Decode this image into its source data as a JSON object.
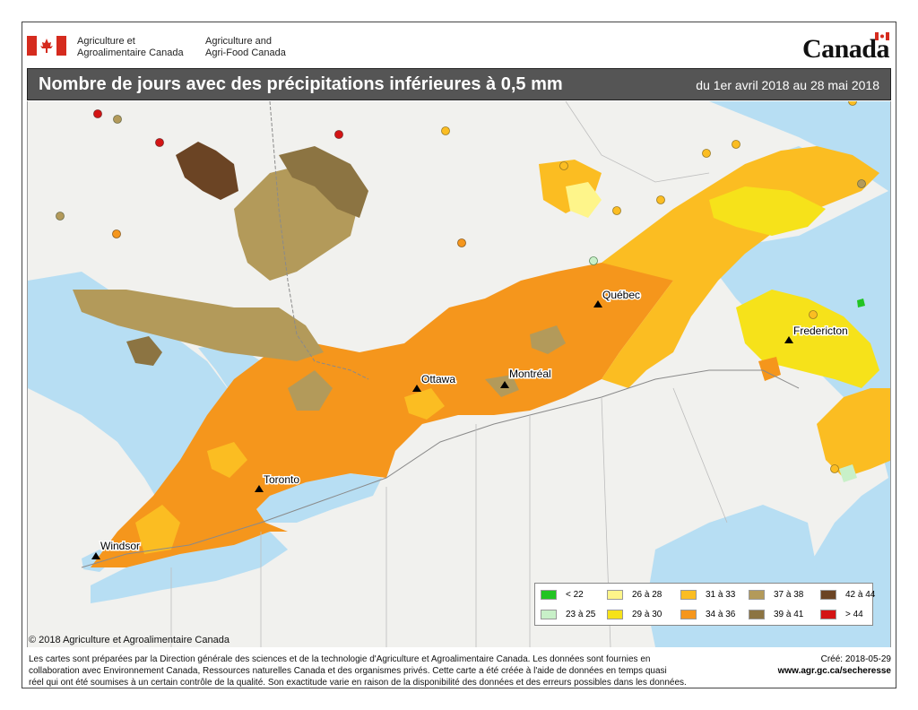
{
  "header": {
    "dept_fr_line1": "Agriculture et",
    "dept_fr_line2": "Agroalimentaire Canada",
    "dept_en_line1": "Agriculture and",
    "dept_en_line2": "Agri-Food Canada",
    "wordmark": "Canada"
  },
  "title": {
    "main": "Nombre de jours avec des précipitations inférieures à 0,5 mm",
    "period": "du 1er avril 2018 au 28 mai 2018"
  },
  "cities": [
    {
      "name": "Québec"
    },
    {
      "name": "Fredericton"
    },
    {
      "name": "Ottawa"
    },
    {
      "name": "Montréal"
    },
    {
      "name": "Toronto"
    },
    {
      "name": "Windsor"
    }
  ],
  "legend": {
    "items": [
      {
        "label": "< 22",
        "color": "#22c422"
      },
      {
        "label": "23 à 25",
        "color": "#c8f0c8"
      },
      {
        "label": "26 à 28",
        "color": "#fef58a"
      },
      {
        "label": "29 à 30",
        "color": "#f6e21a"
      },
      {
        "label": "31 à 33",
        "color": "#fbbd22"
      },
      {
        "label": "34 à 36",
        "color": "#f5961c"
      },
      {
        "label": "37 à 38",
        "color": "#b39a5a"
      },
      {
        "label": "39 à 41",
        "color": "#8c7442"
      },
      {
        "label": "42 à 44",
        "color": "#6b4424"
      },
      {
        "label": "> 44",
        "color": "#d41414"
      }
    ]
  },
  "copyright": "© 2018 Agriculture et Agroalimentaire Canada",
  "footer": {
    "line1": "Les cartes sont préparées par la Direction générale des sciences et de la technologie d'Agriculture et Agroalimentaire Canada. Les données sont fournies en",
    "line2": "collaboration avec Environnement Canada, Ressources naturelles Canada et des organismes privés. Cette carte a été créée à l'aide de données en temps quasi",
    "line3": "réel qui ont été soumises à un certain contrôle de la qualité. Son exactitude varie en raison de la disponibilité des données et des erreurs possibles dans les données.",
    "created": "Créé: 2018-05-29",
    "url": "www.agr.gc.ca/secheresse"
  }
}
